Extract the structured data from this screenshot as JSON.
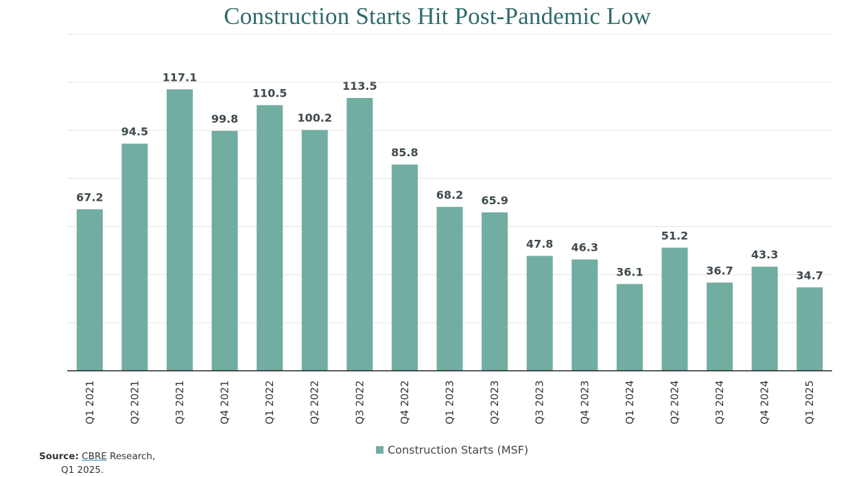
{
  "chart_data": {
    "type": "bar",
    "title": "Construction Starts Hit Post-Pandemic Low",
    "xlabel": "",
    "ylabel": "",
    "categories": [
      "Q1 2021",
      "Q2 2021",
      "Q3 2021",
      "Q4 2021",
      "Q1 2022",
      "Q2 2022",
      "Q3 2022",
      "Q4 2022",
      "Q1 2023",
      "Q2 2023",
      "Q3 2023",
      "Q4 2023",
      "Q1 2024",
      "Q2 2024",
      "Q3 2024",
      "Q4 2024",
      "Q1 2025"
    ],
    "series": [
      {
        "name": "Construction Starts (MSF)",
        "values": [
          67.2,
          94.5,
          117.1,
          99.8,
          110.5,
          100.2,
          113.5,
          85.8,
          68.2,
          65.9,
          47.8,
          46.3,
          36.1,
          51.2,
          36.7,
          43.3,
          34.7
        ],
        "labels": [
          "67.2",
          "94.5",
          "117.1",
          "99.8",
          "110.5",
          "100.2",
          "113.5",
          "85.8",
          "68.2",
          "65.9",
          "47.8",
          "46.3",
          "36.1",
          "51.2",
          "36.7",
          "43.3",
          "34.7"
        ]
      }
    ],
    "ylim": [
      0,
      140
    ],
    "ygrid_step": 20,
    "grid": true,
    "y_tick_labels_shown": false,
    "legend_position": "bottom",
    "bar_color": "#72ada1",
    "data_labels": true
  },
  "source": {
    "label": "Source",
    "separator": ":",
    "org": "CBRE",
    "rest": " Research,",
    "line2": "Q1 2025."
  }
}
